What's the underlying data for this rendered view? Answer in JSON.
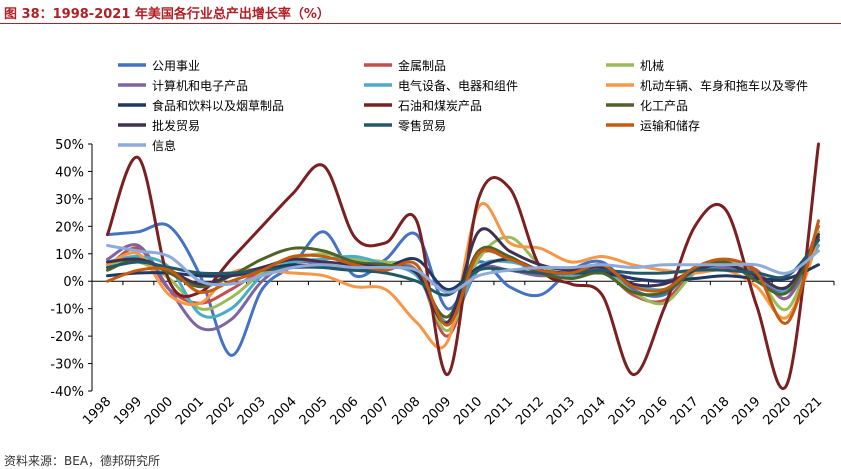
{
  "figure": {
    "title": "图 38：1998-2021 年美国各行业总产出增长率（%）",
    "source": "资料来源：BEA，德邦研究所"
  },
  "chart_data": {
    "type": "line",
    "x": [
      "1998",
      "1999",
      "2000",
      "2001",
      "2002",
      "2003",
      "2004",
      "2005",
      "2006",
      "2007",
      "2008",
      "2009",
      "2010",
      "2011",
      "2012",
      "2013",
      "2014",
      "2015",
      "2016",
      "2017",
      "2018",
      "2019",
      "2020",
      "2021"
    ],
    "y_ticks": [
      "50%",
      "40%",
      "30%",
      "20%",
      "10%",
      "0%",
      "-10%",
      "-20%",
      "-30%",
      "-40%"
    ],
    "ylim": [
      -40,
      50
    ],
    "y_unit": "%",
    "grid": false,
    "legend_position": "top",
    "series": [
      {
        "name": "公用事业",
        "color": "#4472c4",
        "values": [
          17,
          18,
          20,
          2,
          -27,
          -3,
          6,
          18,
          2,
          8,
          17,
          -10,
          7,
          -2,
          -5,
          4,
          7,
          -3,
          -5,
          5,
          6,
          1,
          -3,
          15
        ]
      },
      {
        "name": "金属制品",
        "color": "#c0504d",
        "values": [
          5,
          12,
          -3,
          -8,
          -3,
          4,
          8,
          7,
          6,
          5,
          4,
          -20,
          9,
          8,
          3,
          3,
          4,
          -5,
          -7,
          4,
          8,
          4,
          -6,
          20
        ]
      },
      {
        "name": "机械",
        "color": "#9bbb59",
        "values": [
          6,
          7,
          1,
          -10,
          -6,
          3,
          8,
          10,
          8,
          7,
          4,
          -18,
          8,
          16,
          6,
          2,
          4,
          -4,
          -8,
          3,
          7,
          2,
          -10,
          18
        ]
      },
      {
        "name": "计算机和电子产品",
        "color": "#8064a2",
        "values": [
          8,
          13,
          -3,
          -17,
          -14,
          0,
          7,
          6,
          6,
          5,
          4,
          -15,
          4,
          4,
          2,
          3,
          4,
          1,
          0,
          3,
          5,
          3,
          -6,
          16
        ]
      },
      {
        "name": "电气设备、电器和组件",
        "color": "#4bacc6",
        "values": [
          7,
          9,
          5,
          -12,
          -10,
          2,
          7,
          8,
          9,
          6,
          2,
          -15,
          5,
          7,
          4,
          2,
          3,
          -1,
          -3,
          3,
          6,
          2,
          -3,
          13
        ]
      },
      {
        "name": "机动车辆、车身和拖车以及零件",
        "color": "#f79646",
        "values": [
          6,
          10,
          -5,
          -8,
          3,
          4,
          3,
          2,
          -2,
          -3,
          -15,
          -22,
          27,
          14,
          12,
          7,
          9,
          6,
          4,
          3,
          4,
          -2,
          -13,
          16
        ]
      },
      {
        "name": "食品和饮料以及烟草制品",
        "color": "#1f3864",
        "values": [
          2,
          3,
          3,
          2,
          2,
          4,
          6,
          5,
          4,
          5,
          8,
          -3,
          5,
          8,
          4,
          3,
          3,
          1,
          0,
          1,
          2,
          1,
          1,
          6
        ]
      },
      {
        "name": "石油和煤炭产品",
        "color": "#7b2020",
        "values": [
          17,
          45,
          0,
          -4,
          8,
          20,
          32,
          42,
          16,
          14,
          22,
          -34,
          30,
          34,
          5,
          -1,
          -5,
          -34,
          -10,
          20,
          26,
          -9,
          -37,
          50
        ]
      },
      {
        "name": "化工产品",
        "color": "#4f6228",
        "values": [
          4,
          8,
          3,
          -2,
          2,
          8,
          12,
          11,
          7,
          6,
          3,
          -13,
          11,
          9,
          3,
          1,
          3,
          -4,
          -4,
          4,
          7,
          0,
          -4,
          16
        ]
      },
      {
        "name": "批发贸易",
        "color": "#403151",
        "values": [
          7,
          8,
          4,
          -1,
          2,
          5,
          8,
          7,
          6,
          5,
          3,
          -15,
          18,
          11,
          6,
          4,
          5,
          -1,
          -1,
          4,
          6,
          2,
          -2,
          17
        ]
      },
      {
        "name": "零售贸易",
        "color": "#215968",
        "values": [
          5,
          7,
          5,
          3,
          3,
          4,
          5,
          5,
          4,
          3,
          0,
          -5,
          4,
          4,
          3,
          3,
          4,
          3,
          3,
          4,
          4,
          3,
          2,
          15
        ]
      },
      {
        "name": "运输和储存",
        "color": "#c55a11",
        "values": [
          0,
          4,
          4,
          -4,
          0,
          4,
          9,
          9,
          6,
          4,
          6,
          -16,
          10,
          8,
          4,
          3,
          6,
          -2,
          -3,
          5,
          8,
          3,
          -15,
          22
        ]
      },
      {
        "name": "信息",
        "color": "#8eaadb",
        "values": [
          13,
          11,
          9,
          0,
          -1,
          2,
          5,
          6,
          5,
          5,
          4,
          -4,
          2,
          4,
          5,
          5,
          6,
          5,
          6,
          6,
          6,
          6,
          3,
          11
        ]
      }
    ]
  }
}
